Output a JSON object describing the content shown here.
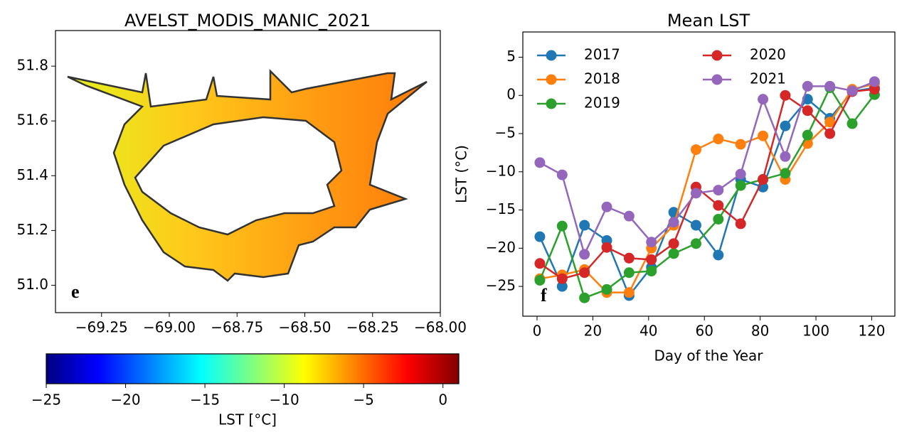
{
  "chart_data": [
    {
      "type": "map",
      "title": "AVELST_MODIS_MANIC_2021",
      "label": "e",
      "xlim": [
        -69.42,
        -68.0
      ],
      "ylim": [
        50.9,
        51.93
      ],
      "xticks": [
        {
          "value": -69.25,
          "label": "−69.25"
        },
        {
          "value": -69.0,
          "label": "−69.00"
        },
        {
          "value": -68.75,
          "label": "−68.75"
        },
        {
          "value": -68.5,
          "label": "−68.50"
        },
        {
          "value": -68.25,
          "label": "−68.25"
        },
        {
          "value": -68.0,
          "label": "−68.00"
        }
      ],
      "yticks": [
        {
          "value": 51.0,
          "label": "51.0"
        },
        51.2,
        51.4,
        51.6,
        51.8
      ],
      "colorbar": {
        "label": "LST [°C]",
        "colormap": "jet",
        "lim": [
          -25,
          1
        ],
        "ticks": [
          {
            "value": -25,
            "label": "−25"
          },
          {
            "value": -20,
            "label": "−20"
          },
          {
            "value": -15,
            "label": "−15"
          },
          {
            "value": -10,
            "label": "−10"
          },
          {
            "value": -5,
            "label": "−5"
          },
          0
        ]
      }
    },
    {
      "type": "line",
      "title": "Mean LST",
      "label": "f",
      "xlabel": "Day of the Year",
      "ylabel": "LST (°C)",
      "legend": "upper left",
      "x": [
        1,
        9,
        17,
        25,
        33,
        41,
        49,
        57,
        65,
        73,
        81,
        89,
        97,
        105,
        113,
        121
      ],
      "xlim": [
        -5.1,
        128.3
      ],
      "ylim": [
        -28.9,
        8.3
      ],
      "xticks": [
        0,
        20,
        40,
        60,
        80,
        100,
        120
      ],
      "yticks": [
        {
          "value": -25,
          "label": "−25"
        },
        {
          "value": -20,
          "label": "−20"
        },
        {
          "value": -15,
          "label": "−15"
        },
        {
          "value": -10,
          "label": "−10"
        },
        {
          "value": -5,
          "label": "−5"
        },
        0,
        5
      ],
      "series": [
        {
          "name": "2017",
          "color": "#1f77b4",
          "values": [
            -18.5,
            -25,
            -17,
            -19,
            -26.2,
            -22.5,
            -15.3,
            -17,
            -20.9,
            -11,
            -12,
            -4,
            -0.5,
            -3,
            0.5,
            1
          ]
        },
        {
          "name": "2018",
          "color": "#ff7f0e",
          "values": [
            -24,
            -23.5,
            -22.8,
            -25.8,
            -25.8,
            -20,
            -17,
            -7.1,
            -5.7,
            -6.4,
            -5.3,
            -11,
            -6.3,
            -3.5,
            0.8,
            1.5
          ]
        },
        {
          "name": "2019",
          "color": "#2ca02c",
          "values": [
            -24.2,
            -17.1,
            -26.5,
            -25.4,
            -23.2,
            -23,
            -20.7,
            -19.4,
            -16.2,
            -11.8,
            -11,
            -10.2,
            -5.2,
            1,
            -3.7,
            0.1
          ]
        },
        {
          "name": "2020",
          "color": "#d62728",
          "values": [
            -22,
            -24,
            -23.2,
            -19.9,
            -21.3,
            -21.5,
            -19.4,
            -12,
            -14.4,
            -16.8,
            -11,
            0,
            -2,
            -5,
            0.5,
            0.8
          ]
        },
        {
          "name": "2021",
          "color": "#9467bd",
          "values": [
            -8.8,
            -10.4,
            -20.8,
            -14.6,
            -15.8,
            -19.2,
            -16.6,
            -12.8,
            -12.4,
            -10.3,
            -0.5,
            -8,
            1.2,
            1.2,
            0.6,
            1.8
          ]
        }
      ]
    }
  ]
}
